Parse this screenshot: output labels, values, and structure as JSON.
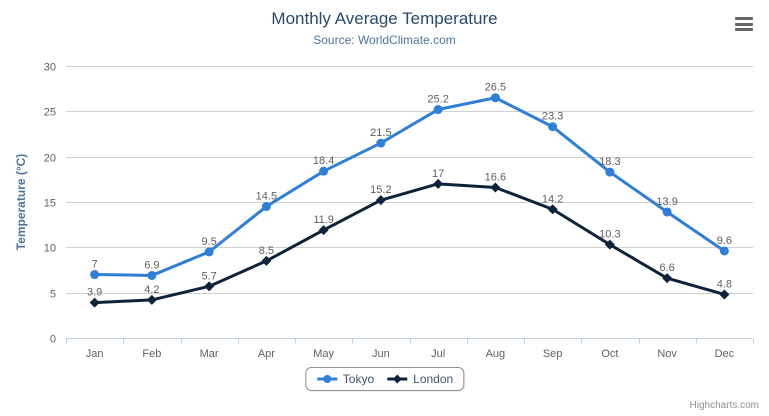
{
  "header": {
    "title": "Monthly Average Temperature",
    "subtitle": "Source: WorldClimate.com"
  },
  "export_menu": {
    "icon": "hamburger-menu-icon"
  },
  "credits": {
    "label": "Highcharts.com"
  },
  "colors": {
    "title": "#274b6d",
    "subtitle": "#4d759e",
    "axis_title": "#4d759e",
    "tick_label": "#606060",
    "grid_line": "#d0d0d0",
    "axis_line": "#c0d0e0",
    "data_label": "#606060",
    "legend_text": "#3e576f",
    "legend_border": "#909090",
    "credits_text": "#909090",
    "menu_icon": "#666666",
    "background": "#ffffff"
  },
  "chart_data": {
    "type": "line",
    "title": "Monthly Average Temperature",
    "subtitle": "Source: WorldClimate.com",
    "categories": [
      "Jan",
      "Feb",
      "Mar",
      "Apr",
      "May",
      "Jun",
      "Jul",
      "Aug",
      "Sep",
      "Oct",
      "Nov",
      "Dec"
    ],
    "series": [
      {
        "name": "Tokyo",
        "color": "#2f7ed8",
        "marker": "circle",
        "values": [
          7,
          6.9,
          9.5,
          14.5,
          18.4,
          21.5,
          25.2,
          26.5,
          23.3,
          18.3,
          13.9,
          9.6
        ]
      },
      {
        "name": "London",
        "color": "#0d233a",
        "marker": "diamond",
        "values": [
          3.9,
          4.2,
          5.7,
          8.5,
          11.9,
          15.2,
          17,
          16.6,
          14.2,
          10.3,
          6.6,
          4.8
        ]
      }
    ],
    "xlabel": "",
    "ylabel": "Temperature (°C)",
    "ylim": [
      0,
      30
    ],
    "ytick_interval": 5,
    "grid": true,
    "legend_position": "bottom",
    "data_labels": true
  }
}
